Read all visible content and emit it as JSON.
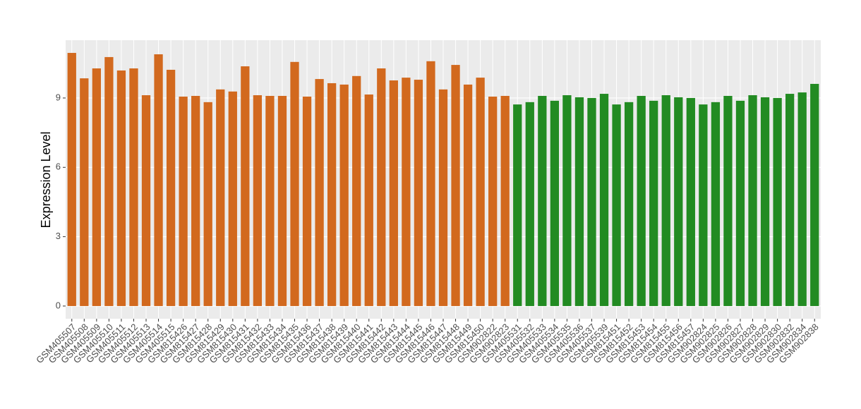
{
  "chart_data": {
    "type": "bar",
    "y_label": "Expression Level",
    "categories": [
      "GSM405507",
      "GSM405508",
      "GSM405509",
      "GSM405510",
      "GSM405511",
      "GSM405512",
      "GSM405513",
      "GSM405514",
      "GSM405515",
      "GSM815426",
      "GSM815427",
      "GSM815428",
      "GSM815429",
      "GSM815430",
      "GSM815431",
      "GSM815432",
      "GSM815433",
      "GSM815434",
      "GSM815435",
      "GSM815436",
      "GSM815437",
      "GSM815438",
      "GSM815439",
      "GSM815440",
      "GSM815441",
      "GSM815442",
      "GSM815443",
      "GSM815444",
      "GSM815445",
      "GSM815446",
      "GSM815447",
      "GSM815448",
      "GSM815449",
      "GSM815450",
      "GSM902822",
      "GSM902823",
      "GSM405531",
      "GSM405532",
      "GSM405533",
      "GSM405534",
      "GSM405535",
      "GSM405536",
      "GSM405537",
      "GSM405539",
      "GSM815451",
      "GSM815452",
      "GSM815453",
      "GSM815454",
      "GSM815455",
      "GSM815456",
      "GSM815457",
      "GSM902824",
      "GSM902825",
      "GSM902826",
      "GSM902827",
      "GSM902828",
      "GSM902829",
      "GSM902830",
      "GSM902832",
      "GSM902834",
      "GSM902838"
    ],
    "values": [
      10.95,
      9.85,
      10.28,
      10.77,
      10.19,
      10.28,
      9.12,
      10.89,
      10.22,
      9.06,
      9.09,
      8.82,
      9.37,
      9.28,
      10.37,
      9.12,
      9.09,
      9.09,
      10.56,
      9.06,
      9.82,
      9.64,
      9.58,
      9.95,
      9.15,
      10.28,
      9.76,
      9.88,
      9.79,
      10.59,
      9.37,
      10.43,
      9.58,
      9.88,
      9.06,
      9.09,
      8.72,
      8.82,
      9.09,
      8.88,
      9.12,
      9.03,
      9.0,
      9.18,
      8.72,
      8.82,
      9.09,
      8.88,
      9.12,
      9.03,
      9.0,
      8.72,
      8.82,
      9.09,
      8.88,
      9.12,
      9.03,
      9.0,
      9.18,
      9.24,
      9.61
    ],
    "colors": [
      "#d2691e",
      "#d2691e",
      "#d2691e",
      "#d2691e",
      "#d2691e",
      "#d2691e",
      "#d2691e",
      "#d2691e",
      "#d2691e",
      "#d2691e",
      "#d2691e",
      "#d2691e",
      "#d2691e",
      "#d2691e",
      "#d2691e",
      "#d2691e",
      "#d2691e",
      "#d2691e",
      "#d2691e",
      "#d2691e",
      "#d2691e",
      "#d2691e",
      "#d2691e",
      "#d2691e",
      "#d2691e",
      "#d2691e",
      "#d2691e",
      "#d2691e",
      "#d2691e",
      "#d2691e",
      "#d2691e",
      "#d2691e",
      "#d2691e",
      "#d2691e",
      "#d2691e",
      "#d2691e",
      "#228b22",
      "#228b22",
      "#228b22",
      "#228b22",
      "#228b22",
      "#228b22",
      "#228b22",
      "#228b22",
      "#228b22",
      "#228b22",
      "#228b22",
      "#228b22",
      "#228b22",
      "#228b22",
      "#228b22",
      "#228b22",
      "#228b22",
      "#228b22",
      "#228b22",
      "#228b22",
      "#228b22",
      "#228b22",
      "#228b22",
      "#228b22",
      "#228b22"
    ],
    "ylim": [
      -0.55,
      11.5
    ],
    "yticks": [
      0,
      3,
      6,
      9
    ],
    "grid": true
  }
}
